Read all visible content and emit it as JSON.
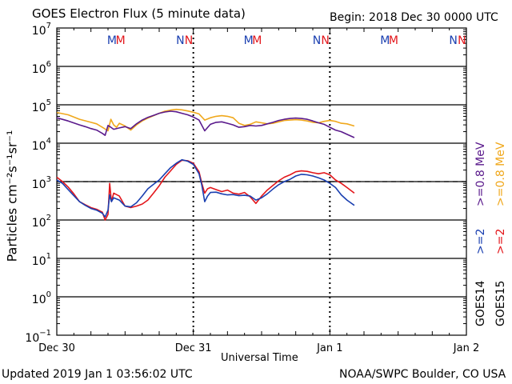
{
  "header": {
    "title": "GOES Electron Flux (5 minute data)",
    "begin": "Begin: 2018 Dec 30 0000 UTC"
  },
  "footer": {
    "updated": "Updated 2019 Jan  1 03:56:02 UTC",
    "credit": "NOAA/SWPC Boulder, CO USA"
  },
  "colors": {
    "goes14_2mev": "#1a3fb0",
    "goes15_2mev": "#e3161b",
    "goes14_08mev": "#5a1a8c",
    "goes15_08mev": "#f0a81c",
    "axis": "#000000"
  },
  "chart_data": {
    "type": "line",
    "title": "GOES Electron Flux (5 minute data)",
    "xlabel": "Universal Time",
    "ylabel": "Particles cm⁻²s⁻¹sr⁻¹",
    "yscale": "log",
    "ylim_exp": [
      -1,
      7
    ],
    "y_ticks": [
      {
        "base": "10",
        "exp": "7"
      },
      {
        "base": "10",
        "exp": "6"
      },
      {
        "base": "10",
        "exp": "5"
      },
      {
        "base": "10",
        "exp": "4"
      },
      {
        "base": "10",
        "exp": "3"
      },
      {
        "base": "10",
        "exp": "2"
      },
      {
        "base": "10",
        "exp": "1"
      },
      {
        "base": "10",
        "exp": "0"
      },
      {
        "base": "10",
        "exp": "−1"
      }
    ],
    "x_unit": "hours since 2018 Dec 30 0000 UTC",
    "xlim": [
      0,
      72
    ],
    "x_ticks": [
      {
        "label": "Dec 30",
        "hour": 0
      },
      {
        "label": "Dec 31",
        "hour": 24
      },
      {
        "label": "Jan 1",
        "hour": 48
      },
      {
        "label": "Jan 2",
        "hour": 72
      }
    ],
    "threshold_flux": 1000,
    "data_end_hour": 52.3,
    "local_time_markers": [
      {
        "label": "M",
        "hour": 9.7,
        "color": "#1a3fb0"
      },
      {
        "label": "M",
        "hour": 11.2,
        "color": "#e3161b"
      },
      {
        "label": "N",
        "hour": 21.7,
        "color": "#1a3fb0"
      },
      {
        "label": "N",
        "hour": 23.2,
        "color": "#e3161b"
      },
      {
        "label": "M",
        "hour": 33.7,
        "color": "#1a3fb0"
      },
      {
        "label": "M",
        "hour": 35.2,
        "color": "#e3161b"
      },
      {
        "label": "N",
        "hour": 45.7,
        "color": "#1a3fb0"
      },
      {
        "label": "N",
        "hour": 47.2,
        "color": "#e3161b"
      },
      {
        "label": "M",
        "hour": 57.7,
        "color": "#1a3fb0"
      },
      {
        "label": "M",
        "hour": 59.2,
        "color": "#e3161b"
      },
      {
        "label": "N",
        "hour": 69.7,
        "color": "#1a3fb0"
      },
      {
        "label": "N",
        "hour": 71.2,
        "color": "#e3161b"
      }
    ],
    "legend": [
      {
        "label": ">=2",
        "color": "#1a3fb0"
      },
      {
        "label": ">=2",
        "color": "#e3161b"
      },
      {
        "label": ">=0.8  MeV",
        "color": "#5a1a8c"
      },
      {
        "label": ">=0.8  MeV",
        "color": "#f0a81c"
      },
      {
        "label": "GOES14",
        "color": "#000000"
      },
      {
        "label": "GOES15",
        "color": "#000000"
      }
    ],
    "series": [
      {
        "name": "GOES15 >=0.8 MeV",
        "color": "#f0a81c",
        "x": [
          0,
          2,
          4,
          6,
          7,
          8,
          9,
          9.5,
          10,
          10.5,
          11,
          12,
          13,
          14,
          15,
          16,
          17,
          18,
          19,
          20,
          21,
          22,
          23,
          24,
          25,
          26,
          27,
          28,
          29,
          30,
          31,
          32,
          33,
          34,
          35,
          36,
          37,
          38,
          39,
          40,
          41,
          42,
          43,
          44,
          45,
          46,
          47,
          48,
          49,
          50,
          51,
          52.3
        ],
        "y": [
          63000.0,
          55000.0,
          42000.0,
          35000.0,
          32000.0,
          26000.0,
          21000.0,
          42000.0,
          30000.0,
          26000.0,
          33000.0,
          28000.0,
          22000.0,
          30000.0,
          38000.0,
          45000.0,
          52000.0,
          60000.0,
          68000.0,
          73000.0,
          76000.0,
          74000.0,
          69000.0,
          64000.0,
          58000.0,
          40000.0,
          46000.0,
          50000.0,
          52000.0,
          50000.0,
          46000.0,
          33000.0,
          29000.0,
          31000.0,
          36000.0,
          34000.0,
          32000.0,
          33000.0,
          36000.0,
          39000.0,
          40000.0,
          41000.0,
          40000.0,
          38000.0,
          35000.0,
          34000.0,
          37000.0,
          39000.0,
          37000.0,
          33000.0,
          32000.0,
          28000.0
        ]
      },
      {
        "name": "GOES14 >=0.8 MeV",
        "color": "#5a1a8c",
        "x": [
          0,
          2,
          4,
          5,
          6,
          7,
          8,
          8.5,
          9,
          9.5,
          10,
          11,
          12,
          13,
          14,
          15,
          16,
          17,
          18,
          19,
          20,
          21,
          22,
          23,
          24,
          25,
          26,
          27,
          28,
          29,
          30,
          31,
          32,
          33,
          34,
          35,
          36,
          37,
          38,
          39,
          40,
          41,
          42,
          43,
          44,
          45,
          46,
          47,
          48,
          49,
          50,
          51,
          52.3
        ],
        "y": [
          46000.0,
          38000.0,
          30000.0,
          27000.0,
          24000.0,
          22000.0,
          18000.0,
          16000.0,
          29000.0,
          26000.0,
          23000.0,
          25000.0,
          27000.0,
          24000.0,
          32000.0,
          40000.0,
          47000.0,
          53000.0,
          60000.0,
          65000.0,
          68000.0,
          66000.0,
          60000.0,
          55000.0,
          48000.0,
          40000.0,
          21000.0,
          31000.0,
          35000.0,
          36000.0,
          33000.0,
          30000.0,
          26000.0,
          27000.0,
          29000.0,
          28000.0,
          29000.0,
          32000.0,
          35000.0,
          39000.0,
          42000.0,
          44000.0,
          45000.0,
          44000.0,
          42000.0,
          38000.0,
          34000.0,
          31000.0,
          26000.0,
          22000.0,
          20000.0,
          17000.0,
          14000.0
        ]
      },
      {
        "name": "GOES15 >=2 MeV",
        "color": "#e3161b",
        "x": [
          0,
          1,
          2,
          3,
          4,
          5,
          6,
          7,
          8,
          8.5,
          9,
          9.3,
          9.6,
          10,
          11,
          12,
          13,
          14,
          15,
          16,
          17,
          18,
          19,
          20,
          21,
          22,
          23,
          24,
          25,
          25.5,
          26,
          26.5,
          27,
          28,
          29,
          30,
          31,
          32,
          33,
          34,
          35,
          36,
          37,
          38,
          39,
          40,
          41,
          42,
          43,
          44,
          45,
          46,
          47,
          48,
          49,
          50,
          51,
          52.3
        ],
        "y": [
          1300,
          1000,
          720,
          480,
          300,
          250,
          210,
          190,
          160,
          100,
          140,
          900,
          300,
          500,
          420,
          230,
          210,
          230,
          260,
          330,
          500,
          780,
          1300,
          1900,
          2800,
          3600,
          3500,
          3000,
          1800,
          900,
          500,
          650,
          700,
          620,
          550,
          600,
          500,
          470,
          520,
          400,
          270,
          420,
          600,
          800,
          1050,
          1300,
          1500,
          1800,
          1900,
          1850,
          1700,
          1600,
          1700,
          1500,
          1100,
          900,
          700,
          500
        ]
      },
      {
        "name": "GOES14 >=2 MeV",
        "color": "#1a3fb0",
        "x": [
          0,
          1,
          2,
          3,
          4,
          5,
          6,
          7,
          8,
          8.5,
          9,
          9.3,
          9.6,
          10,
          11,
          12,
          13,
          14,
          15,
          16,
          17,
          18,
          19,
          20,
          21,
          22,
          23,
          24,
          25,
          25.5,
          26,
          26.5,
          27,
          28,
          29,
          30,
          31,
          32,
          33,
          34,
          35,
          36,
          37,
          38,
          39,
          40,
          41,
          42,
          43,
          44,
          45,
          46,
          47,
          48,
          49,
          50,
          51,
          52.3
        ],
        "y": [
          1100,
          900,
          620,
          430,
          300,
          240,
          200,
          180,
          150,
          120,
          180,
          450,
          300,
          380,
          330,
          230,
          220,
          280,
          420,
          650,
          850,
          1100,
          1600,
          2300,
          3000,
          3700,
          3400,
          2800,
          1600,
          800,
          300,
          420,
          520,
          530,
          480,
          450,
          460,
          430,
          440,
          420,
          330,
          380,
          480,
          640,
          830,
          1000,
          1150,
          1400,
          1550,
          1500,
          1400,
          1250,
          1100,
          900,
          700,
          450,
          330,
          240
        ]
      }
    ]
  }
}
